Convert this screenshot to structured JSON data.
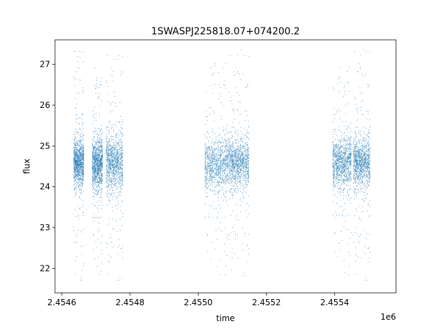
{
  "chart_data": {
    "type": "scatter",
    "title": "1SWASPJ225818.07+074200.2",
    "xlabel": "time",
    "ylabel": "flux",
    "x_offset_label": "1e6",
    "xlim": [
      2454580,
      2455580
    ],
    "ylim": [
      21.4,
      27.6
    ],
    "x_ticks": [
      2454600,
      2454800,
      2455000,
      2455200,
      2455400
    ],
    "x_tick_labels": [
      "2.4546",
      "2.4548",
      "2.4550",
      "2.4552",
      "2.4554"
    ],
    "y_ticks": [
      22,
      23,
      24,
      25,
      26,
      27
    ],
    "y_tick_labels": [
      "22",
      "23",
      "24",
      "25",
      "26",
      "27"
    ],
    "grid": false,
    "marker_color": "#1f77b4",
    "observing_seasons": [
      {
        "x_start": 2454635,
        "x_end": 2454665,
        "y_center": 24.6,
        "y_spread": 0.28,
        "outlier_min": 21.7,
        "outlier_max": 27.4
      },
      {
        "x_start": 2454690,
        "x_end": 2454720,
        "y_center": 24.55,
        "y_spread": 0.32,
        "outlier_min": 21.8,
        "outlier_max": 27.1
      },
      {
        "x_start": 2454730,
        "x_end": 2454780,
        "y_center": 24.6,
        "y_spread": 0.35,
        "outlier_min": 21.7,
        "outlier_max": 27.3
      },
      {
        "x_start": 2455020,
        "x_end": 2455090,
        "y_center": 24.55,
        "y_spread": 0.32,
        "outlier_min": 21.7,
        "outlier_max": 27.5
      },
      {
        "x_start": 2455090,
        "x_end": 2455150,
        "y_center": 24.6,
        "y_spread": 0.3,
        "outlier_min": 21.8,
        "outlier_max": 27.3
      },
      {
        "x_start": 2455395,
        "x_end": 2455450,
        "y_center": 24.6,
        "y_spread": 0.32,
        "outlier_min": 21.7,
        "outlier_max": 27.4
      },
      {
        "x_start": 2455455,
        "x_end": 2455505,
        "y_center": 24.6,
        "y_spread": 0.3,
        "outlier_min": 21.7,
        "outlier_max": 27.4
      }
    ]
  }
}
